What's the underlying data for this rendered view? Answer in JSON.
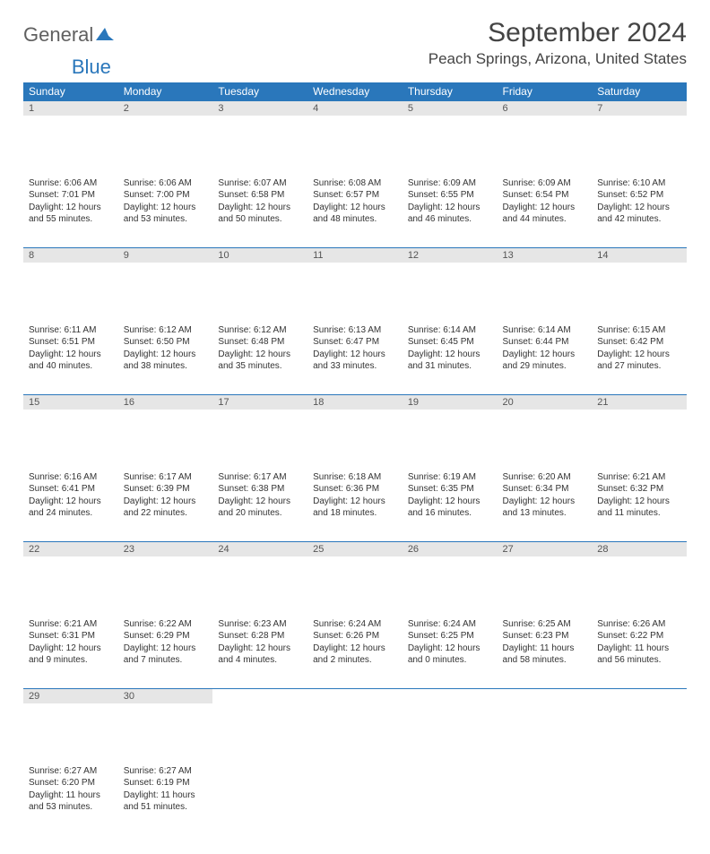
{
  "logo": {
    "text1": "General",
    "text2": "Blue"
  },
  "title": "September 2024",
  "location": "Peach Springs, Arizona, United States",
  "colors": {
    "accent": "#2a77bb",
    "daynum_bg": "#e6e6e6"
  },
  "day_headers": [
    "Sunday",
    "Monday",
    "Tuesday",
    "Wednesday",
    "Thursday",
    "Friday",
    "Saturday"
  ],
  "weeks": [
    [
      {
        "n": "1",
        "sr": "Sunrise: 6:06 AM",
        "ss": "Sunset: 7:01 PM",
        "dl": "Daylight: 12 hours and 55 minutes."
      },
      {
        "n": "2",
        "sr": "Sunrise: 6:06 AM",
        "ss": "Sunset: 7:00 PM",
        "dl": "Daylight: 12 hours and 53 minutes."
      },
      {
        "n": "3",
        "sr": "Sunrise: 6:07 AM",
        "ss": "Sunset: 6:58 PM",
        "dl": "Daylight: 12 hours and 50 minutes."
      },
      {
        "n": "4",
        "sr": "Sunrise: 6:08 AM",
        "ss": "Sunset: 6:57 PM",
        "dl": "Daylight: 12 hours and 48 minutes."
      },
      {
        "n": "5",
        "sr": "Sunrise: 6:09 AM",
        "ss": "Sunset: 6:55 PM",
        "dl": "Daylight: 12 hours and 46 minutes."
      },
      {
        "n": "6",
        "sr": "Sunrise: 6:09 AM",
        "ss": "Sunset: 6:54 PM",
        "dl": "Daylight: 12 hours and 44 minutes."
      },
      {
        "n": "7",
        "sr": "Sunrise: 6:10 AM",
        "ss": "Sunset: 6:52 PM",
        "dl": "Daylight: 12 hours and 42 minutes."
      }
    ],
    [
      {
        "n": "8",
        "sr": "Sunrise: 6:11 AM",
        "ss": "Sunset: 6:51 PM",
        "dl": "Daylight: 12 hours and 40 minutes."
      },
      {
        "n": "9",
        "sr": "Sunrise: 6:12 AM",
        "ss": "Sunset: 6:50 PM",
        "dl": "Daylight: 12 hours and 38 minutes."
      },
      {
        "n": "10",
        "sr": "Sunrise: 6:12 AM",
        "ss": "Sunset: 6:48 PM",
        "dl": "Daylight: 12 hours and 35 minutes."
      },
      {
        "n": "11",
        "sr": "Sunrise: 6:13 AM",
        "ss": "Sunset: 6:47 PM",
        "dl": "Daylight: 12 hours and 33 minutes."
      },
      {
        "n": "12",
        "sr": "Sunrise: 6:14 AM",
        "ss": "Sunset: 6:45 PM",
        "dl": "Daylight: 12 hours and 31 minutes."
      },
      {
        "n": "13",
        "sr": "Sunrise: 6:14 AM",
        "ss": "Sunset: 6:44 PM",
        "dl": "Daylight: 12 hours and 29 minutes."
      },
      {
        "n": "14",
        "sr": "Sunrise: 6:15 AM",
        "ss": "Sunset: 6:42 PM",
        "dl": "Daylight: 12 hours and 27 minutes."
      }
    ],
    [
      {
        "n": "15",
        "sr": "Sunrise: 6:16 AM",
        "ss": "Sunset: 6:41 PM",
        "dl": "Daylight: 12 hours and 24 minutes."
      },
      {
        "n": "16",
        "sr": "Sunrise: 6:17 AM",
        "ss": "Sunset: 6:39 PM",
        "dl": "Daylight: 12 hours and 22 minutes."
      },
      {
        "n": "17",
        "sr": "Sunrise: 6:17 AM",
        "ss": "Sunset: 6:38 PM",
        "dl": "Daylight: 12 hours and 20 minutes."
      },
      {
        "n": "18",
        "sr": "Sunrise: 6:18 AM",
        "ss": "Sunset: 6:36 PM",
        "dl": "Daylight: 12 hours and 18 minutes."
      },
      {
        "n": "19",
        "sr": "Sunrise: 6:19 AM",
        "ss": "Sunset: 6:35 PM",
        "dl": "Daylight: 12 hours and 16 minutes."
      },
      {
        "n": "20",
        "sr": "Sunrise: 6:20 AM",
        "ss": "Sunset: 6:34 PM",
        "dl": "Daylight: 12 hours and 13 minutes."
      },
      {
        "n": "21",
        "sr": "Sunrise: 6:21 AM",
        "ss": "Sunset: 6:32 PM",
        "dl": "Daylight: 12 hours and 11 minutes."
      }
    ],
    [
      {
        "n": "22",
        "sr": "Sunrise: 6:21 AM",
        "ss": "Sunset: 6:31 PM",
        "dl": "Daylight: 12 hours and 9 minutes."
      },
      {
        "n": "23",
        "sr": "Sunrise: 6:22 AM",
        "ss": "Sunset: 6:29 PM",
        "dl": "Daylight: 12 hours and 7 minutes."
      },
      {
        "n": "24",
        "sr": "Sunrise: 6:23 AM",
        "ss": "Sunset: 6:28 PM",
        "dl": "Daylight: 12 hours and 4 minutes."
      },
      {
        "n": "25",
        "sr": "Sunrise: 6:24 AM",
        "ss": "Sunset: 6:26 PM",
        "dl": "Daylight: 12 hours and 2 minutes."
      },
      {
        "n": "26",
        "sr": "Sunrise: 6:24 AM",
        "ss": "Sunset: 6:25 PM",
        "dl": "Daylight: 12 hours and 0 minutes."
      },
      {
        "n": "27",
        "sr": "Sunrise: 6:25 AM",
        "ss": "Sunset: 6:23 PM",
        "dl": "Daylight: 11 hours and 58 minutes."
      },
      {
        "n": "28",
        "sr": "Sunrise: 6:26 AM",
        "ss": "Sunset: 6:22 PM",
        "dl": "Daylight: 11 hours and 56 minutes."
      }
    ],
    [
      {
        "n": "29",
        "sr": "Sunrise: 6:27 AM",
        "ss": "Sunset: 6:20 PM",
        "dl": "Daylight: 11 hours and 53 minutes."
      },
      {
        "n": "30",
        "sr": "Sunrise: 6:27 AM",
        "ss": "Sunset: 6:19 PM",
        "dl": "Daylight: 11 hours and 51 minutes."
      },
      null,
      null,
      null,
      null,
      null
    ]
  ]
}
